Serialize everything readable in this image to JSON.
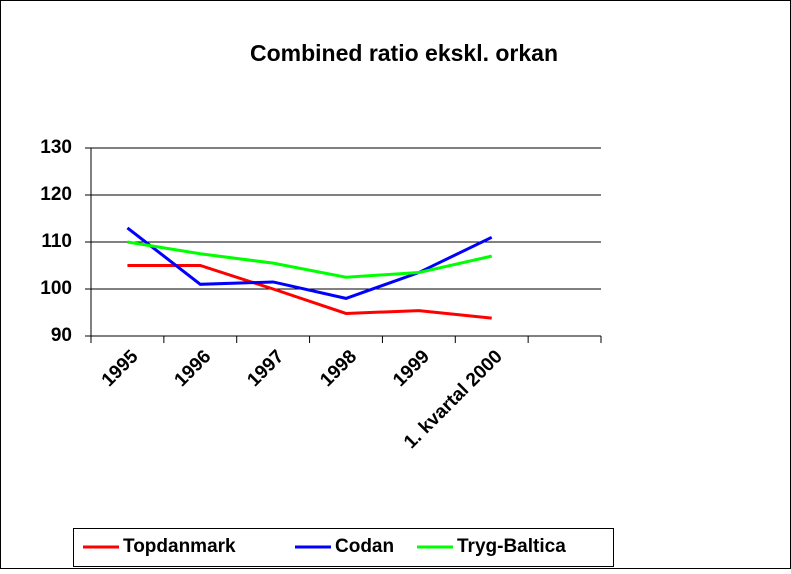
{
  "chart_data": {
    "type": "line",
    "title": "Combined ratio ekskl. orkan",
    "categories": [
      "1995",
      "1996",
      "1997",
      "1998",
      "1999",
      "1. kvartal 2000",
      null
    ],
    "series": [
      {
        "name": "Topdanmark",
        "color": "#ff0000",
        "values": [
          105,
          105,
          100,
          94.8,
          95.4,
          93.8,
          null
        ]
      },
      {
        "name": "Codan",
        "color": "#0000ff",
        "values": [
          113,
          101,
          101.5,
          98,
          103.5,
          111,
          null
        ]
      },
      {
        "name": "Tryg-Baltica",
        "color": "#00ff00",
        "values": [
          110,
          107.5,
          105.5,
          102.5,
          103.5,
          107,
          null
        ]
      }
    ],
    "ylim": [
      90,
      130
    ],
    "yticks": [
      90,
      100,
      110,
      120,
      130
    ],
    "grid": true,
    "legend": "bottom"
  }
}
